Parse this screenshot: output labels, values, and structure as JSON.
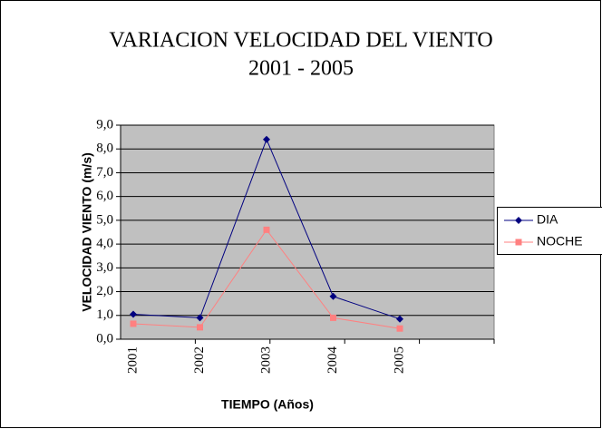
{
  "chart_data": {
    "type": "line",
    "title": "VARIACION VELOCIDAD DEL VIENTO",
    "subtitle": "2001 - 2005",
    "x_label": "TIEMPO (Años)",
    "y_label": "VELOCIDAD VIENTO (m/s)",
    "categories": [
      "2001",
      "2002",
      "2003",
      "2004",
      "2005"
    ],
    "series": [
      {
        "name": "DIA",
        "color": "#000080",
        "marker": "diamond",
        "values": [
          1.05,
          0.9,
          8.4,
          1.8,
          0.85
        ]
      },
      {
        "name": "NOCHE",
        "color": "#ff8080",
        "marker": "square",
        "values": [
          0.65,
          0.5,
          4.6,
          0.9,
          0.45
        ]
      }
    ],
    "ylim": [
      0,
      9
    ],
    "yticks": [
      {
        "value": 0,
        "label": "0,0"
      },
      {
        "value": 1,
        "label": "1,0"
      },
      {
        "value": 2,
        "label": "2,0"
      },
      {
        "value": 3,
        "label": "3,0"
      },
      {
        "value": 4,
        "label": "4,0"
      },
      {
        "value": 5,
        "label": "5,0"
      },
      {
        "value": 6,
        "label": "6,0"
      },
      {
        "value": 7,
        "label": "7,0"
      },
      {
        "value": 8,
        "label": "8,0"
      },
      {
        "value": 9,
        "label": "9,0"
      }
    ],
    "grid": true,
    "plot_background": "#c0c0c0",
    "legend": "right"
  }
}
